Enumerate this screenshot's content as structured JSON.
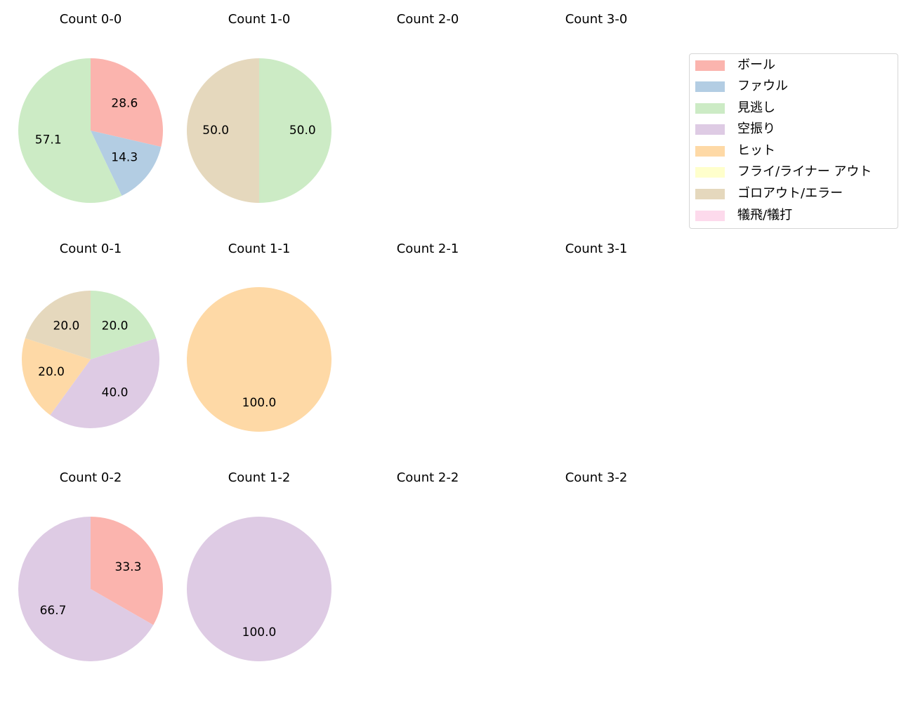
{
  "chart_data": {
    "type": "pie",
    "layout": {
      "rows": 3,
      "cols": 4,
      "start_angle_deg": 90,
      "direction": "clockwise",
      "autopct": "%.1f"
    },
    "legend": {
      "position": "upper right",
      "entries": [
        {
          "label": "ボール",
          "color": "#fbb4ae"
        },
        {
          "label": "ファウル",
          "color": "#b3cde3"
        },
        {
          "label": "見逃し",
          "color": "#ccebc5"
        },
        {
          "label": "空振り",
          "color": "#decbe4"
        },
        {
          "label": "ヒット",
          "color": "#fed9a6"
        },
        {
          "label": "フライ/ライナー アウト",
          "color": "#ffffcc"
        },
        {
          "label": "ゴロアウト/エラー",
          "color": "#e5d8bd"
        },
        {
          "label": "犠飛/犠打",
          "color": "#fddaec"
        }
      ]
    },
    "subplots": [
      {
        "title": "Count 0-0",
        "row": 0,
        "col": 0,
        "radius": 103,
        "slices": [
          {
            "label": "ボール",
            "value": 28.6
          },
          {
            "label": "ファウル",
            "value": 14.3
          },
          {
            "label": "見逃し",
            "value": 57.1
          }
        ]
      },
      {
        "title": "Count 1-0",
        "row": 0,
        "col": 1,
        "radius": 103,
        "slices": [
          {
            "label": "見逃し",
            "value": 50.0
          },
          {
            "label": "ゴロアウト/エラー",
            "value": 50.0
          }
        ]
      },
      {
        "title": "Count 2-0",
        "row": 0,
        "col": 2,
        "slices": []
      },
      {
        "title": "Count 3-0",
        "row": 0,
        "col": 3,
        "slices": []
      },
      {
        "title": "Count 0-1",
        "row": 1,
        "col": 0,
        "radius": 98,
        "slices": [
          {
            "label": "見逃し",
            "value": 20.0
          },
          {
            "label": "空振り",
            "value": 40.0
          },
          {
            "label": "ヒット",
            "value": 20.0
          },
          {
            "label": "ゴロアウト/エラー",
            "value": 20.0
          }
        ]
      },
      {
        "title": "Count 1-1",
        "row": 1,
        "col": 1,
        "radius": 103,
        "slices": [
          {
            "label": "ヒット",
            "value": 100.0
          }
        ]
      },
      {
        "title": "Count 2-1",
        "row": 1,
        "col": 2,
        "slices": []
      },
      {
        "title": "Count 3-1",
        "row": 1,
        "col": 3,
        "slices": []
      },
      {
        "title": "Count 0-2",
        "row": 2,
        "col": 0,
        "radius": 103,
        "slices": [
          {
            "label": "ボール",
            "value": 33.3
          },
          {
            "label": "空振り",
            "value": 66.7
          }
        ]
      },
      {
        "title": "Count 1-2",
        "row": 2,
        "col": 1,
        "radius": 103,
        "slices": [
          {
            "label": "空振り",
            "value": 100.0
          }
        ]
      },
      {
        "title": "Count 2-2",
        "row": 2,
        "col": 2,
        "slices": []
      },
      {
        "title": "Count 3-2",
        "row": 2,
        "col": 3,
        "slices": []
      }
    ]
  }
}
